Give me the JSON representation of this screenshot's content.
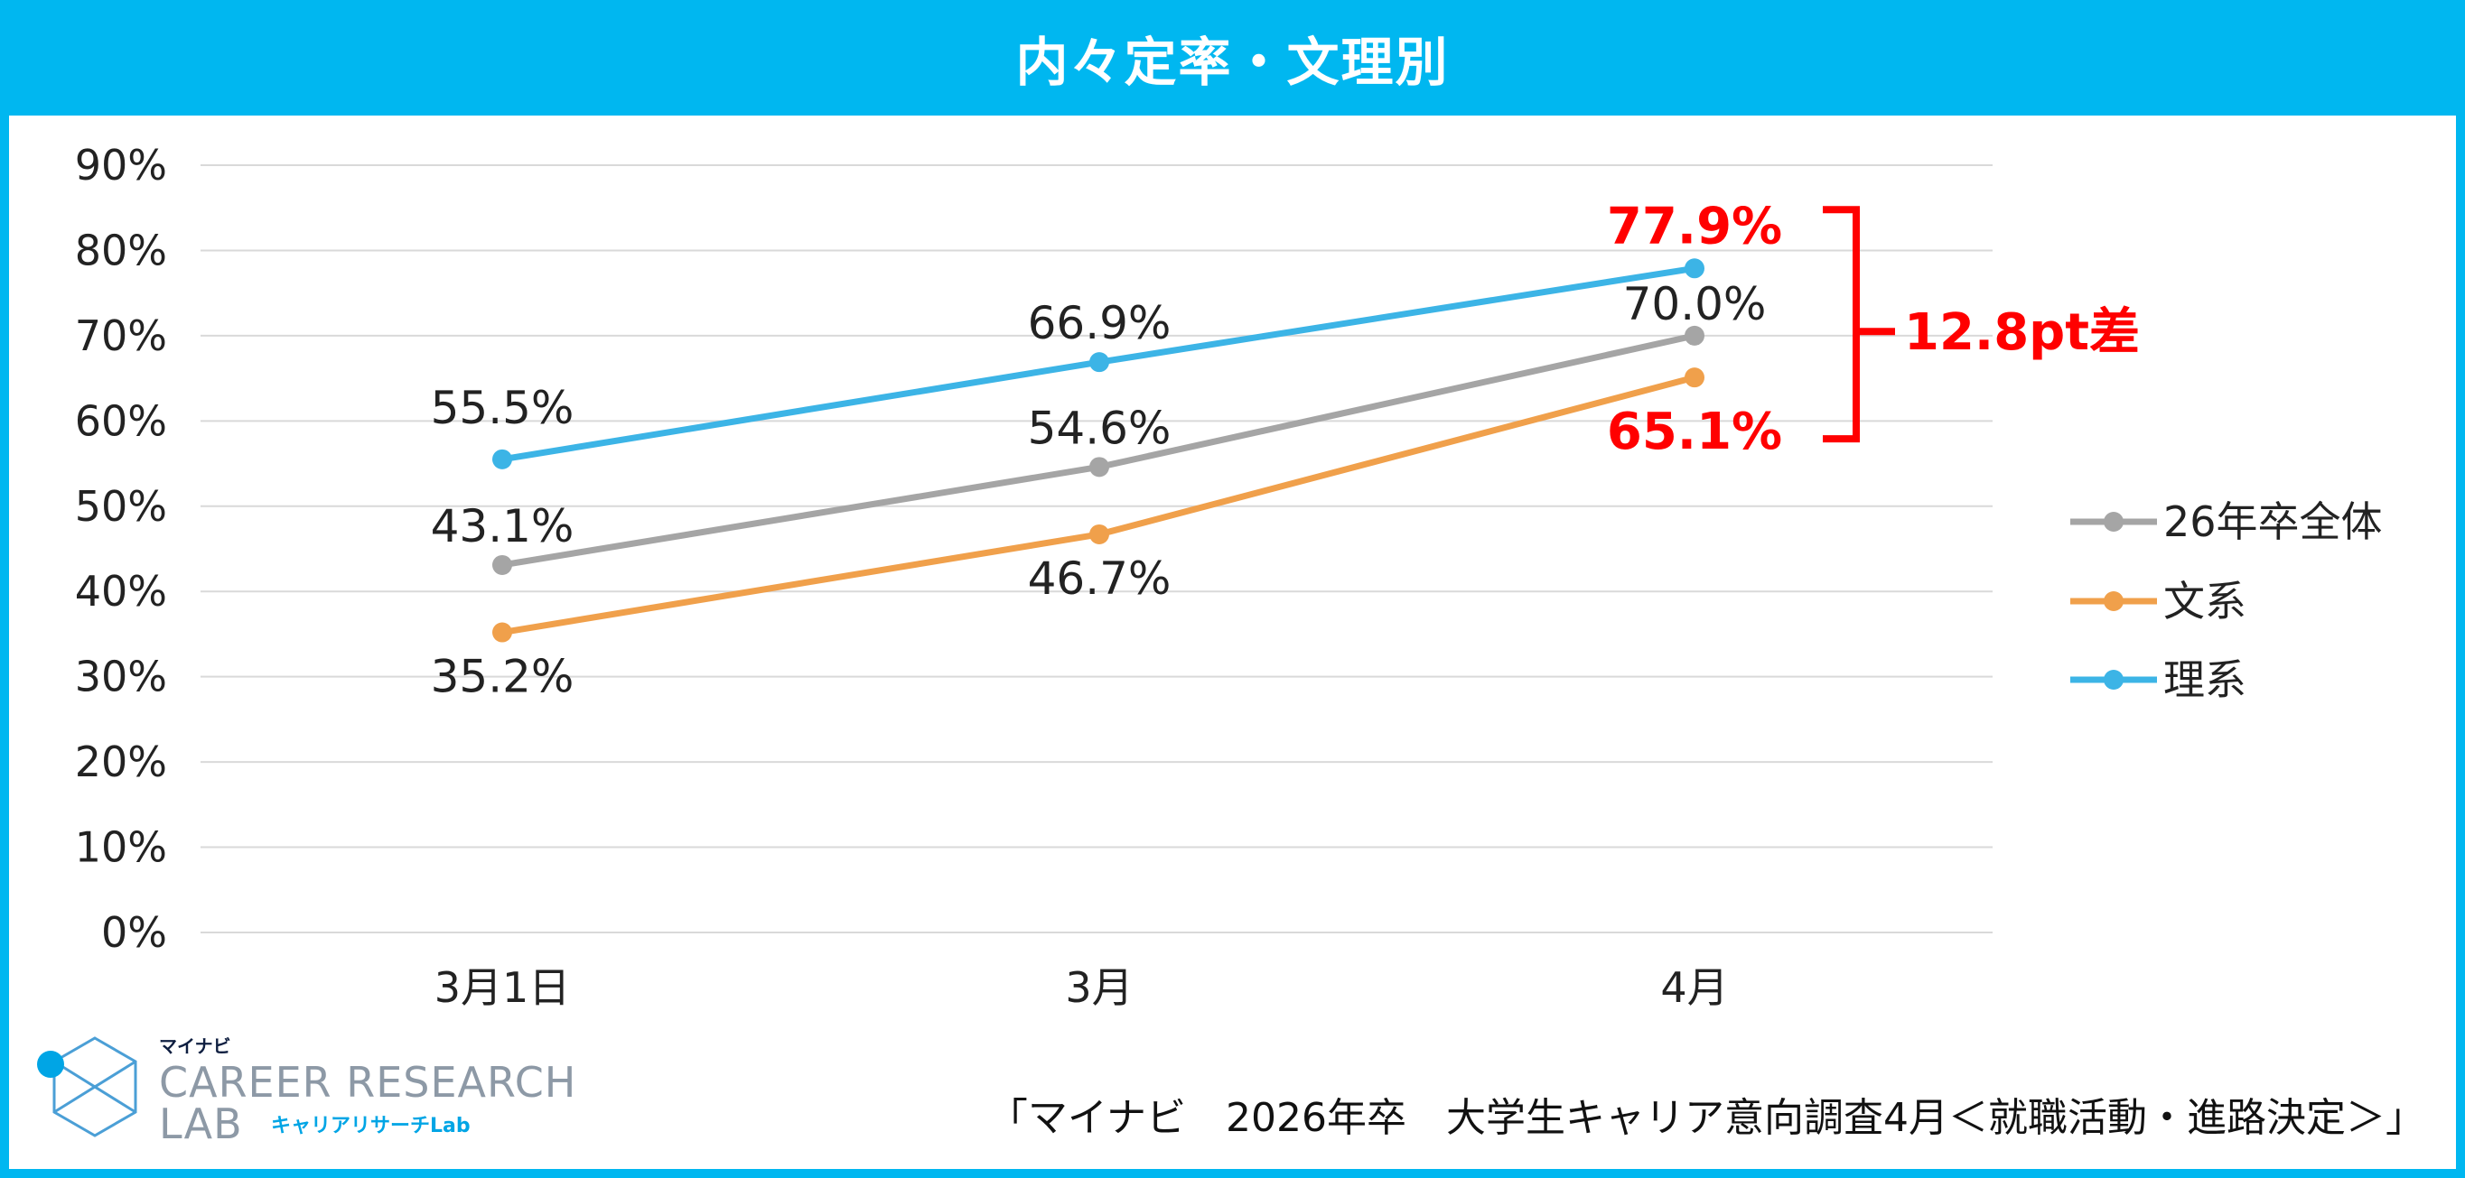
{
  "title": "内々定率・文理別",
  "chart_data": {
    "type": "line",
    "categories": [
      "3月1日",
      "3月",
      "4月"
    ],
    "y_ticks": [
      "90%",
      "80%",
      "70%",
      "60%",
      "50%",
      "40%",
      "30%",
      "20%",
      "10%",
      "0%"
    ],
    "ylim": [
      0,
      90
    ],
    "grid": true,
    "legend_position": "right",
    "series": [
      {
        "name": "26年卒全体",
        "values": [
          43.1,
          54.6,
          70.0
        ],
        "labels": [
          "43.1%",
          "54.6%",
          "70.0%"
        ],
        "color": "#a5a5a5"
      },
      {
        "name": "文系",
        "values": [
          35.2,
          46.7,
          65.1
        ],
        "labels": [
          "35.2%",
          "46.7%",
          "65.1%"
        ],
        "color": "#f0a04b"
      },
      {
        "name": "理系",
        "values": [
          55.5,
          66.9,
          77.9
        ],
        "labels": [
          "55.5%",
          "66.9%",
          "77.9%"
        ],
        "color": "#3cb4e6"
      }
    ],
    "annotation": {
      "text": "12.8pt差",
      "color": "#ff0000"
    }
  },
  "source": "「マイナビ　2026年卒　大学生キャリア意向調査4月＜就職活動・進路決定＞」",
  "logo": {
    "small": "マイナビ",
    "line1": "CAREER RESEARCH",
    "line2": "LAB",
    "jp": "キャリアリサーチLab"
  }
}
